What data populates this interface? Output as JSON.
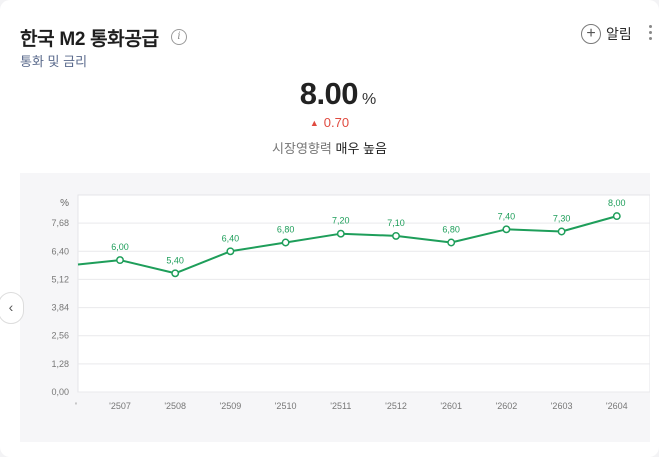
{
  "header": {
    "title": "한국 M2 통화공급",
    "subtitle": "통화 및 금리",
    "info_icon": "info-icon",
    "alert_label": "알림",
    "alert_icon": "plus-icon",
    "more_icon": "more-vertical-icon"
  },
  "summary": {
    "value": "8.00",
    "unit": "%",
    "change": "0.70",
    "change_direction": "up",
    "impact_label": "시장영향력",
    "impact_value": "매우 높음"
  },
  "colors": {
    "line": "#1e9e5a",
    "up": "#e04a3f",
    "chart_bg": "#f6f6f8"
  },
  "chart_data": {
    "type": "line",
    "ylabel": "%",
    "ylim": [
      0,
      8.96
    ],
    "yticks": [
      0,
      1.28,
      2.56,
      3.84,
      5.12,
      6.4,
      7.68
    ],
    "ytick_labels": [
      "0,00",
      "1,28",
      "2,56",
      "3,84",
      "5,12",
      "6,40",
      "7,68"
    ],
    "categories": [
      "'2507",
      "'2508",
      "'2509",
      "'2510",
      "'2511",
      "'2512",
      "'2601",
      "'2602",
      "'2603",
      "'2604"
    ],
    "values": [
      6.0,
      5.4,
      6.4,
      6.8,
      7.2,
      7.1,
      6.8,
      7.4,
      7.3,
      8.0
    ],
    "data_labels": [
      "6,00",
      "5,40",
      "6,40",
      "6,80",
      "7,20",
      "7,10",
      "6,80",
      "7,40",
      "7,30",
      "8,00"
    ],
    "leading_value": 5.8,
    "grid": true,
    "legend": "none"
  }
}
